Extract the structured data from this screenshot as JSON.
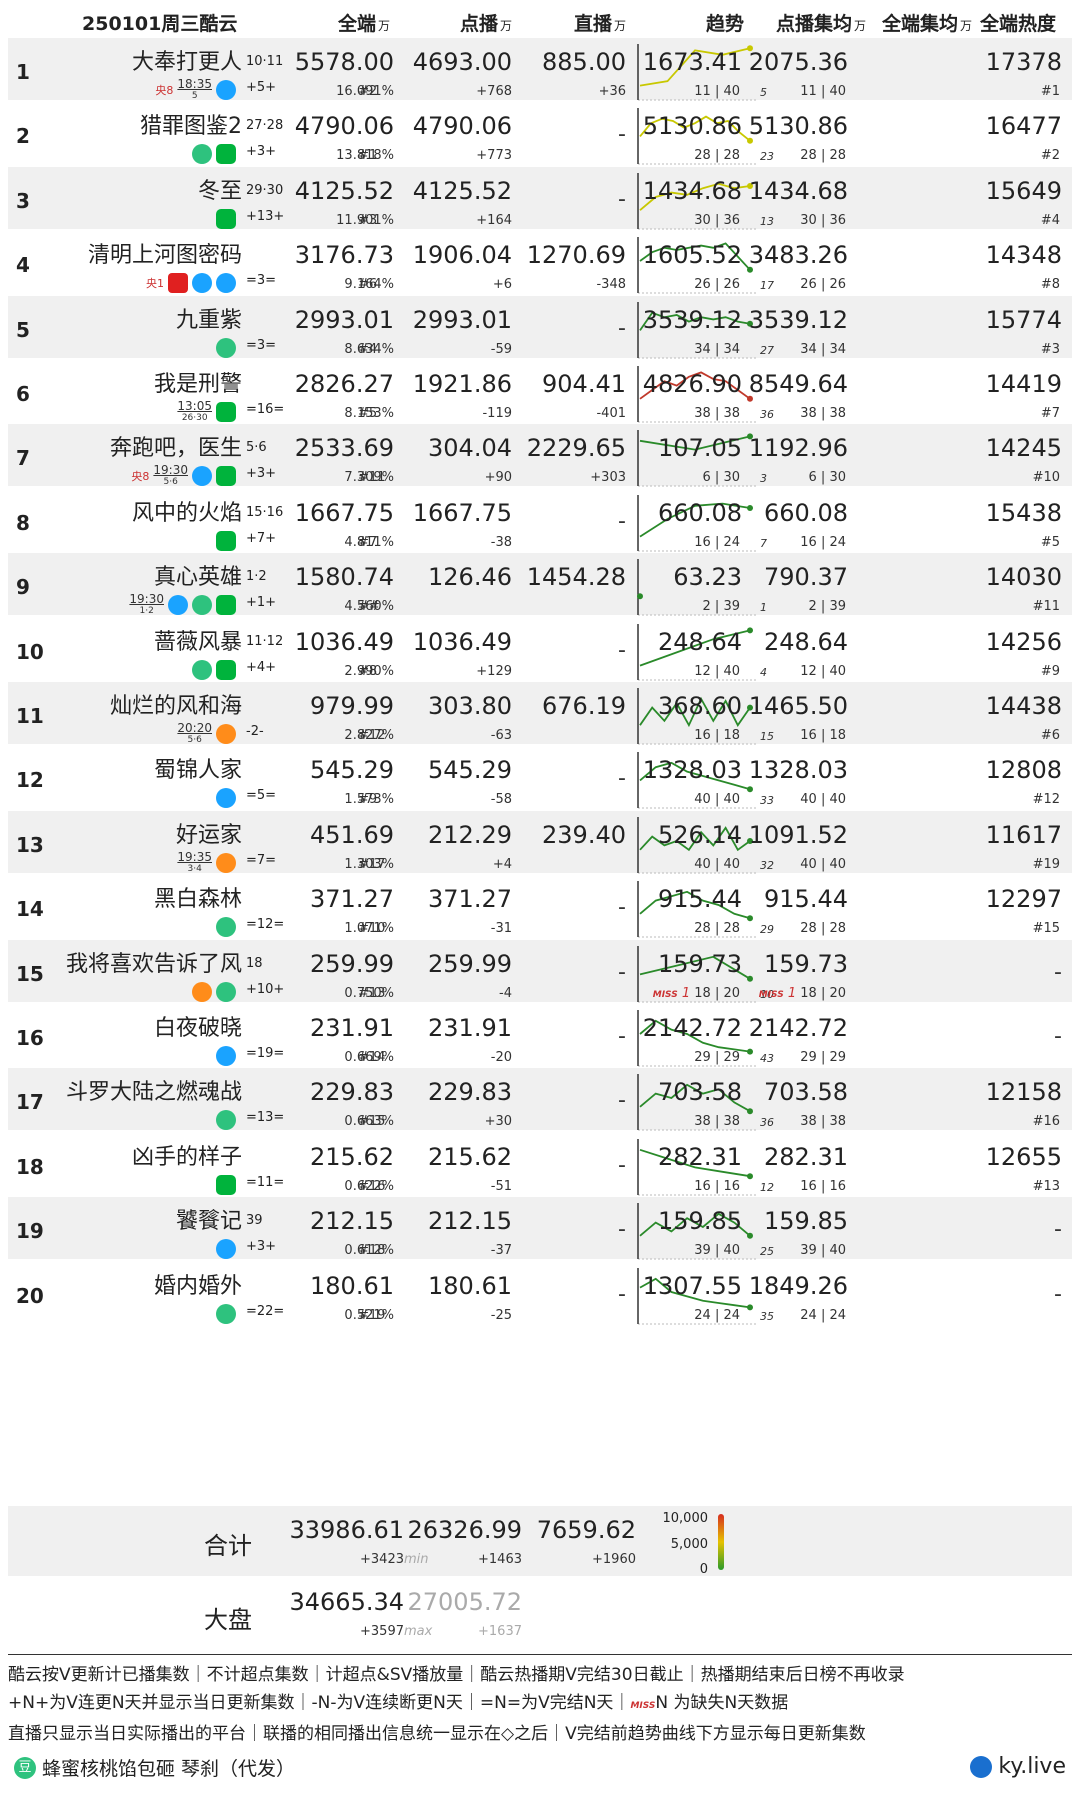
{
  "header": {
    "date": "250101周三酷云",
    "col_quan": "全端",
    "col_dianbo": "点播",
    "col_zhibo": "直播",
    "col_trend": "趋势",
    "col_db_avg": "点播集均",
    "col_qd_avg": "全端集均",
    "col_heat": "全端热度",
    "unit": "万"
  },
  "rows": [
    {
      "rank": "1",
      "title": "大奉打更人",
      "ep": "10·11",
      "chg": "+5+",
      "tv": "央8",
      "tv_time": "18:35",
      "tv_date": "5",
      "platforms": [
        "youku"
      ],
      "quan": "5578.00",
      "share": "16.091%",
      "dianbo": "4693.00",
      "db_rank": "#2",
      "db_chg": "+768",
      "zhibo": "885.00",
      "zb_chg": "+36",
      "trend_n": "5",
      "db_avg": "1673.41",
      "db_cnt": "11 | 40",
      "qd_avg": "2075.36",
      "qd_cnt": "11 | 40",
      "heat": "17378",
      "heat_rank": "#1",
      "trend": [
        0.1,
        0.2,
        0.9,
        0.8,
        0.95
      ]
    },
    {
      "rank": "2",
      "title": "猎罪图鉴2",
      "ep": "27·28",
      "chg": "+3+",
      "tv": "",
      "platforms": [
        "tencent",
        "iqiyi"
      ],
      "quan": "4790.06",
      "share": "13.818%",
      "dianbo": "4790.06",
      "db_rank": "#1",
      "db_chg": "+773",
      "zhibo": "-",
      "zb_chg": "",
      "trend_n": "23",
      "db_avg": "5130.86",
      "db_cnt": "28 | 28",
      "qd_avg": "5130.86",
      "qd_cnt": "28 | 28",
      "heat": "16477",
      "heat_rank": "#2",
      "trend": [
        0.4,
        0.7,
        0.8,
        0.75,
        0.6,
        0.7,
        0.85,
        0.7,
        0.75,
        0.5,
        0.3
      ]
    },
    {
      "rank": "3",
      "title": "冬至",
      "ep": "29·30",
      "chg": "+13+",
      "tv": "",
      "platforms": [
        "iqiyi"
      ],
      "quan": "4125.52",
      "share": "11.901%",
      "dianbo": "4125.52",
      "db_rank": "#3",
      "db_chg": "+164",
      "zhibo": "-",
      "zb_chg": "",
      "trend_n": "13",
      "db_avg": "1434.68",
      "db_cnt": "30 | 36",
      "qd_avg": "1434.68",
      "qd_cnt": "30 | 36",
      "heat": "15649",
      "heat_rank": "#4",
      "trend": [
        0.2,
        0.5,
        0.6,
        0.55,
        0.7,
        0.8,
        0.7,
        0.75
      ]
    },
    {
      "rank": "4",
      "title": "清明上河图密码",
      "ep": "",
      "chg": "=3=",
      "tv": "央1",
      "platforms": [
        "cctv",
        "youku",
        "youku"
      ],
      "quan": "3176.73",
      "share": "9.164%",
      "dianbo": "1906.04",
      "db_rank": "#6",
      "db_chg": "+6",
      "zhibo": "1270.69",
      "zb_chg": "-348",
      "trend_n": "17",
      "db_avg": "1605.52",
      "db_cnt": "26 | 26",
      "qd_avg": "3483.26",
      "qd_cnt": "26 | 26",
      "heat": "14348",
      "heat_rank": "#8",
      "trend": [
        0.5,
        0.7,
        0.8,
        0.75,
        0.8,
        0.85,
        0.8,
        0.9,
        0.6,
        0.3
      ]
    },
    {
      "rank": "5",
      "title": "九重紫",
      "ep": "",
      "chg": "=3=",
      "tv": "",
      "platforms": [
        "tencent"
      ],
      "quan": "2993.01",
      "share": "8.634%",
      "dianbo": "2993.01",
      "db_rank": "#4",
      "db_chg": "-59",
      "zhibo": "-",
      "zb_chg": "",
      "trend_n": "27",
      "db_avg": "3539.12",
      "db_cnt": "34 | 34",
      "qd_avg": "3539.12",
      "qd_cnt": "34 | 34",
      "heat": "15774",
      "heat_rank": "#3",
      "trend": [
        0.4,
        0.8,
        0.7,
        0.75,
        0.6,
        0.7,
        0.65,
        0.7,
        0.6,
        0.55
      ]
    },
    {
      "rank": "6",
      "title": "我是刑警",
      "ep": "",
      "chg": "=16=",
      "tv": "",
      "tv_time": "13:05",
      "tv_date": "26·30",
      "platforms": [
        "iqiyi"
      ],
      "quan": "2826.27",
      "share": "8.153%",
      "dianbo": "1921.86",
      "db_rank": "#5",
      "db_chg": "-119",
      "zhibo": "904.41",
      "zb_chg": "-401",
      "trend_n": "36",
      "db_avg": "4826.90",
      "db_cnt": "38 | 38",
      "qd_avg": "8549.64",
      "qd_cnt": "38 | 38",
      "heat": "14419",
      "heat_rank": "#7",
      "trend": [
        0.3,
        0.5,
        0.7,
        0.6,
        0.8,
        0.9,
        0.75,
        0.7,
        0.5,
        0.3
      ]
    },
    {
      "rank": "7",
      "title": "奔跑吧，医生",
      "ep": "5·6",
      "chg": "+3+",
      "tv": "央8",
      "tv_time": "19:30",
      "tv_date": "5·6",
      "platforms": [
        "youku",
        "iqiyi"
      ],
      "quan": "2533.69",
      "share": "7.309%",
      "dianbo": "304.04",
      "db_rank": "#11",
      "db_chg": "+90",
      "zhibo": "2229.65",
      "zb_chg": "+303",
      "trend_n": "3",
      "db_avg": "107.05",
      "db_cnt": "6 | 30",
      "qd_avg": "1192.96",
      "qd_cnt": "6 | 30",
      "heat": "14245",
      "heat_rank": "#10",
      "trend": [
        0.8,
        0.6,
        0.9
      ]
    },
    {
      "rank": "8",
      "title": "风中的火焰",
      "ep": "15·16",
      "chg": "+7+",
      "tv": "",
      "platforms": [
        "iqiyi"
      ],
      "quan": "1667.75",
      "share": "4.811%",
      "dianbo": "1667.75",
      "db_rank": "#7",
      "db_chg": "-38",
      "zhibo": "-",
      "zb_chg": "",
      "trend_n": "7",
      "db_avg": "660.08",
      "db_cnt": "16 | 24",
      "qd_avg": "660.08",
      "qd_cnt": "16 | 24",
      "heat": "15438",
      "heat_rank": "#5",
      "trend": [
        0.1,
        0.5,
        0.8,
        0.85,
        0.75
      ]
    },
    {
      "rank": "9",
      "title": "真心英雄",
      "ep": "1·2",
      "chg": "+1+",
      "tv": "",
      "tv_time": "19:30",
      "tv_date": "1·2",
      "platforms": [
        "youku",
        "tencent",
        "iqiyi"
      ],
      "quan": "1580.74",
      "share": "4.560%",
      "dianbo": "126.46",
      "db_rank": "##",
      "db_chg": "",
      "zhibo": "1454.28",
      "zb_chg": "",
      "trend_n": "1",
      "db_avg": "63.23",
      "db_cnt": "2 | 39",
      "qd_avg": "790.37",
      "qd_cnt": "2 | 39",
      "heat": "14030",
      "heat_rank": "#11",
      "trend": [
        0.2
      ]
    },
    {
      "rank": "10",
      "title": "蔷薇风暴",
      "ep": "11·12",
      "chg": "+4+",
      "tv": "",
      "platforms": [
        "tencent",
        "iqiyi"
      ],
      "quan": "1036.49",
      "share": "2.990%",
      "dianbo": "1036.49",
      "db_rank": "#8",
      "db_chg": "+129",
      "zhibo": "-",
      "zb_chg": "",
      "trend_n": "4",
      "db_avg": "248.64",
      "db_cnt": "12 | 40",
      "qd_avg": "248.64",
      "qd_cnt": "12 | 40",
      "heat": "14256",
      "heat_rank": "#9",
      "trend": [
        0.1,
        0.4,
        0.7,
        0.9
      ]
    },
    {
      "rank": "11",
      "title": "灿烂的风和海",
      "ep": "",
      "chg": "-2-",
      "tv": "",
      "tv_time": "20:20",
      "tv_date": "5·6",
      "platforms": [
        "mgtv"
      ],
      "quan": "979.99",
      "share": "2.827%",
      "dianbo": "303.80",
      "db_rank": "#12",
      "db_chg": "-63",
      "zhibo": "676.19",
      "zb_chg": "",
      "trend_n": "15",
      "db_avg": "368.60",
      "db_cnt": "16 | 18",
      "qd_avg": "1465.50",
      "qd_cnt": "16 | 18",
      "heat": "14438",
      "heat_rank": "#6",
      "trend": [
        0.2,
        0.6,
        0.3,
        0.7,
        0.2,
        0.8,
        0.3,
        0.75,
        0.2,
        0.6
      ]
    },
    {
      "rank": "12",
      "title": "蜀锦人家",
      "ep": "",
      "chg": "=5=",
      "tv": "",
      "platforms": [
        "youku"
      ],
      "quan": "545.29",
      "share": "1.573%",
      "dianbo": "545.29",
      "db_rank": "#9",
      "db_chg": "-58",
      "zhibo": "-",
      "zb_chg": "",
      "trend_n": "33",
      "db_avg": "1328.03",
      "db_cnt": "40 | 40",
      "qd_avg": "1328.03",
      "qd_cnt": "40 | 40",
      "heat": "12808",
      "heat_rank": "#12",
      "trend": [
        0.4,
        0.7,
        0.8,
        0.6,
        0.5,
        0.4,
        0.3,
        0.2
      ]
    },
    {
      "rank": "13",
      "title": "好运家",
      "ep": "",
      "chg": "=7=",
      "tv": "",
      "tv_time": "19:35",
      "tv_date": "3·4",
      "platforms": [
        "mgtv"
      ],
      "quan": "451.69",
      "share": "1.303%",
      "dianbo": "212.29",
      "db_rank": "#17",
      "db_chg": "+4",
      "zhibo": "239.40",
      "zb_chg": "",
      "trend_n": "32",
      "db_avg": "526.14",
      "db_cnt": "40 | 40",
      "qd_avg": "1091.52",
      "qd_cnt": "40 | 40",
      "heat": "11617",
      "heat_rank": "#19",
      "trend": [
        0.3,
        0.6,
        0.4,
        0.5,
        0.3,
        0.7,
        0.4,
        0.8,
        0.3,
        0.5
      ]
    },
    {
      "rank": "14",
      "title": "黑白森林",
      "ep": "",
      "chg": "=12=",
      "tv": "",
      "platforms": [
        "tencent"
      ],
      "quan": "371.27",
      "share": "1.071%",
      "dianbo": "371.27",
      "db_rank": "#10",
      "db_chg": "-31",
      "zhibo": "-",
      "zb_chg": "",
      "trend_n": "29",
      "db_avg": "915.44",
      "db_cnt": "28 | 28",
      "qd_avg": "915.44",
      "qd_cnt": "28 | 28",
      "heat": "12297",
      "heat_rank": "#15",
      "trend": [
        0.3,
        0.6,
        0.7,
        0.8,
        0.6,
        0.5,
        0.3,
        0.2
      ]
    },
    {
      "rank": "15",
      "title": "我将喜欢告诉了风",
      "ep": "18",
      "chg": "+10+",
      "tv": "",
      "platforms": [
        "mgtv",
        "tencent"
      ],
      "quan": "259.99",
      "share": "0.750%",
      "dianbo": "259.99",
      "db_rank": "#13",
      "db_chg": "-4",
      "zhibo": "-",
      "zb_chg": "",
      "trend_n": "10",
      "db_avg": "159.73",
      "db_cnt": "18 | 20",
      "qd_avg": "159.73",
      "qd_cnt": "18 | 20",
      "heat": "-",
      "heat_rank": "",
      "miss": "MISS",
      "miss_n": "1",
      "trend": [
        0.4,
        0.6,
        0.8,
        0.3
      ]
    },
    {
      "rank": "16",
      "title": "白夜破晓",
      "ep": "",
      "chg": "=19=",
      "tv": "",
      "platforms": [
        "youku"
      ],
      "quan": "231.91",
      "share": "0.669%",
      "dianbo": "231.91",
      "db_rank": "#14",
      "db_chg": "-20",
      "zhibo": "-",
      "zb_chg": "",
      "trend_n": "43",
      "db_avg": "2142.72",
      "db_cnt": "29 | 29",
      "qd_avg": "2142.72",
      "qd_cnt": "29 | 29",
      "heat": "-",
      "heat_rank": "",
      "trend": [
        0.5,
        0.8,
        0.6,
        0.5,
        0.3,
        0.2,
        0.15,
        0.1
      ]
    },
    {
      "rank": "17",
      "title": "斗罗大陆之燃魂战",
      "ep": "",
      "chg": "=13=",
      "tv": "",
      "platforms": [
        "tencent"
      ],
      "quan": "229.83",
      "share": "0.663%",
      "dianbo": "229.83",
      "db_rank": "#15",
      "db_chg": "+30",
      "zhibo": "-",
      "zb_chg": "",
      "trend_n": "36",
      "db_avg": "703.58",
      "db_cnt": "38 | 38",
      "qd_avg": "703.58",
      "qd_cnt": "38 | 38",
      "heat": "12158",
      "heat_rank": "#16",
      "trend": [
        0.3,
        0.6,
        0.5,
        0.8,
        0.6,
        0.7,
        0.4,
        0.2
      ]
    },
    {
      "rank": "18",
      "title": "凶手的样子",
      "ep": "",
      "chg": "=11=",
      "tv": "",
      "platforms": [
        "iqiyi"
      ],
      "quan": "215.62",
      "share": "0.622%",
      "dianbo": "215.62",
      "db_rank": "#16",
      "db_chg": "-51",
      "zhibo": "-",
      "zb_chg": "",
      "trend_n": "12",
      "db_avg": "282.31",
      "db_cnt": "16 | 16",
      "qd_avg": "282.31",
      "qd_cnt": "16 | 16",
      "heat": "12655",
      "heat_rank": "#13",
      "trend": [
        0.8,
        0.6,
        0.4,
        0.3,
        0.2
      ]
    },
    {
      "rank": "19",
      "title": "饕餮记",
      "ep": "39",
      "chg": "+3+",
      "tv": "",
      "platforms": [
        "youku"
      ],
      "quan": "212.15",
      "share": "0.612%",
      "dianbo": "212.15",
      "db_rank": "#18",
      "db_chg": "-37",
      "zhibo": "-",
      "zb_chg": "",
      "trend_n": "25",
      "db_avg": "159.85",
      "db_cnt": "39 | 40",
      "qd_avg": "159.85",
      "qd_cnt": "39 | 40",
      "heat": "-",
      "heat_rank": "",
      "trend": [
        0.3,
        0.6,
        0.4,
        0.7,
        0.5,
        0.8,
        0.6,
        0.3
      ]
    },
    {
      "rank": "20",
      "title": "婚内婚外",
      "ep": "",
      "chg": "=22=",
      "tv": "",
      "platforms": [
        "tencent"
      ],
      "quan": "180.61",
      "share": "0.521%",
      "dianbo": "180.61",
      "db_rank": "#19",
      "db_chg": "-25",
      "zhibo": "-",
      "zb_chg": "",
      "trend_n": "35",
      "db_avg": "1307.55",
      "db_cnt": "24 | 24",
      "qd_avg": "1849.26",
      "qd_cnt": "24 | 24",
      "heat": "-",
      "heat_rank": "",
      "trend": [
        0.6,
        0.8,
        0.5,
        0.4,
        0.3,
        0.25,
        0.2,
        0.15
      ]
    }
  ],
  "total": {
    "label": "合计",
    "quan": "33986.61",
    "quan_chg": "+3423",
    "dianbo": "26326.99",
    "dianbo_tag": "min",
    "dianbo_chg": "+1463",
    "zhibo": "7659.62",
    "zhibo_chg": "+1960",
    "legend_hi": "10,000",
    "legend_mid": "5,000",
    "legend_lo": "0"
  },
  "market": {
    "label": "大盘",
    "quan": "34665.34",
    "quan_chg": "+3597",
    "dianbo": "27005.72",
    "dianbo_tag": "max",
    "dianbo_chg": "+1637"
  },
  "footer": {
    "line1": "酷云按V更新计已播集数｜不计超点集数｜计超点&SV播放量｜酷云热播期V完结30日截止｜热播期结束后日榜不再收录",
    "line2a": "+N+为V连更N天并显示当日更新集数｜-N-为V连续断更N天｜=N=为V完结N天｜",
    "line2_miss": "MISS",
    "line2b": "N 为缺失N天数据",
    "line3": "直播只显示当日实际播出的平台｜联播的相同播出信息统一显示在◇之后｜V完结前趋势曲线下方显示每日更新集数",
    "credit": "蜂蜜核桃馅包砸 琴刹（代发）",
    "credit_icon": "豆",
    "site": "ky.live"
  },
  "colors": {
    "shade": "#f0f0f0",
    "trend_green": "#2a8a2a",
    "trend_yellow": "#c8c800",
    "trend_red": "#c0392b"
  }
}
